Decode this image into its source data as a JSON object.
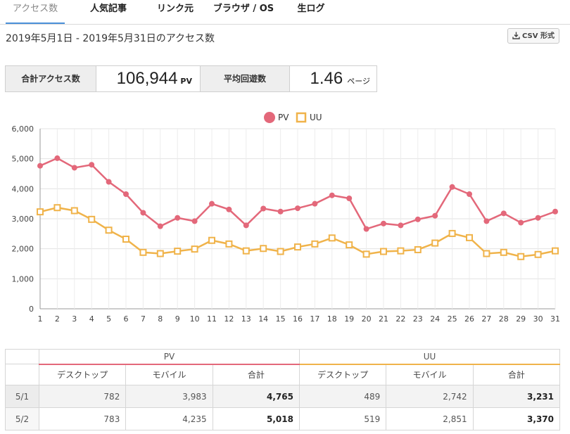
{
  "tabs": [
    "アクセス数",
    "人気記事",
    "リンク元",
    "ブラウザ / OS",
    "生ログ"
  ],
  "range_text": "2019年5月1日 - 2019年5月31日のアクセス数",
  "csv_label": "CSV 形式",
  "summary": {
    "total_label": "合計アクセス数",
    "total_value": "106,944",
    "total_unit": "PV",
    "avg_label": "平均回遊数",
    "avg_value": "1.46",
    "avg_unit": "ページ"
  },
  "chart_data": {
    "type": "line",
    "x": [
      1,
      2,
      3,
      4,
      5,
      6,
      7,
      8,
      9,
      10,
      11,
      12,
      13,
      14,
      15,
      16,
      17,
      18,
      19,
      20,
      21,
      22,
      23,
      24,
      25,
      26,
      27,
      28,
      29,
      30,
      31
    ],
    "ylim": [
      0,
      6000
    ],
    "yticks": [
      "0",
      "1,000",
      "2,000",
      "3,000",
      "4,000",
      "5,000",
      "6,000"
    ],
    "grid": true,
    "legend_position": "top-center",
    "weekend_blue": [
      4,
      11,
      18,
      25
    ],
    "weekend_red": [
      5,
      12,
      19,
      26
    ],
    "series": [
      {
        "name": "PV",
        "color": "#e3687a",
        "marker": "circle",
        "values": [
          4765,
          5018,
          4700,
          4800,
          4230,
          3820,
          3200,
          2750,
          3030,
          2920,
          3500,
          3310,
          2780,
          3340,
          3240,
          3350,
          3500,
          3780,
          3680,
          2660,
          2840,
          2780,
          2980,
          3100,
          4060,
          3820,
          2920,
          3180,
          2870,
          3030,
          3240
        ]
      },
      {
        "name": "UU",
        "color": "#f0b34a",
        "marker": "square",
        "values": [
          3231,
          3370,
          3270,
          2980,
          2620,
          2320,
          1880,
          1840,
          1920,
          1990,
          2280,
          2160,
          1930,
          2010,
          1910,
          2060,
          2160,
          2360,
          2130,
          1820,
          1910,
          1930,
          1970,
          2190,
          2510,
          2370,
          1840,
          1880,
          1740,
          1810,
          1930
        ]
      }
    ]
  },
  "table": {
    "group_pv": "PV",
    "group_uu": "UU",
    "headers": [
      "デスクトップ",
      "モバイル",
      "合計",
      "デスクトップ",
      "モバイル",
      "合計"
    ],
    "rows": [
      {
        "date": "5/1",
        "cells": [
          "782",
          "3,983",
          "4,765",
          "489",
          "2,742",
          "3,231"
        ]
      },
      {
        "date": "5/2",
        "cells": [
          "783",
          "4,235",
          "5,018",
          "519",
          "2,851",
          "3,370"
        ]
      }
    ]
  }
}
